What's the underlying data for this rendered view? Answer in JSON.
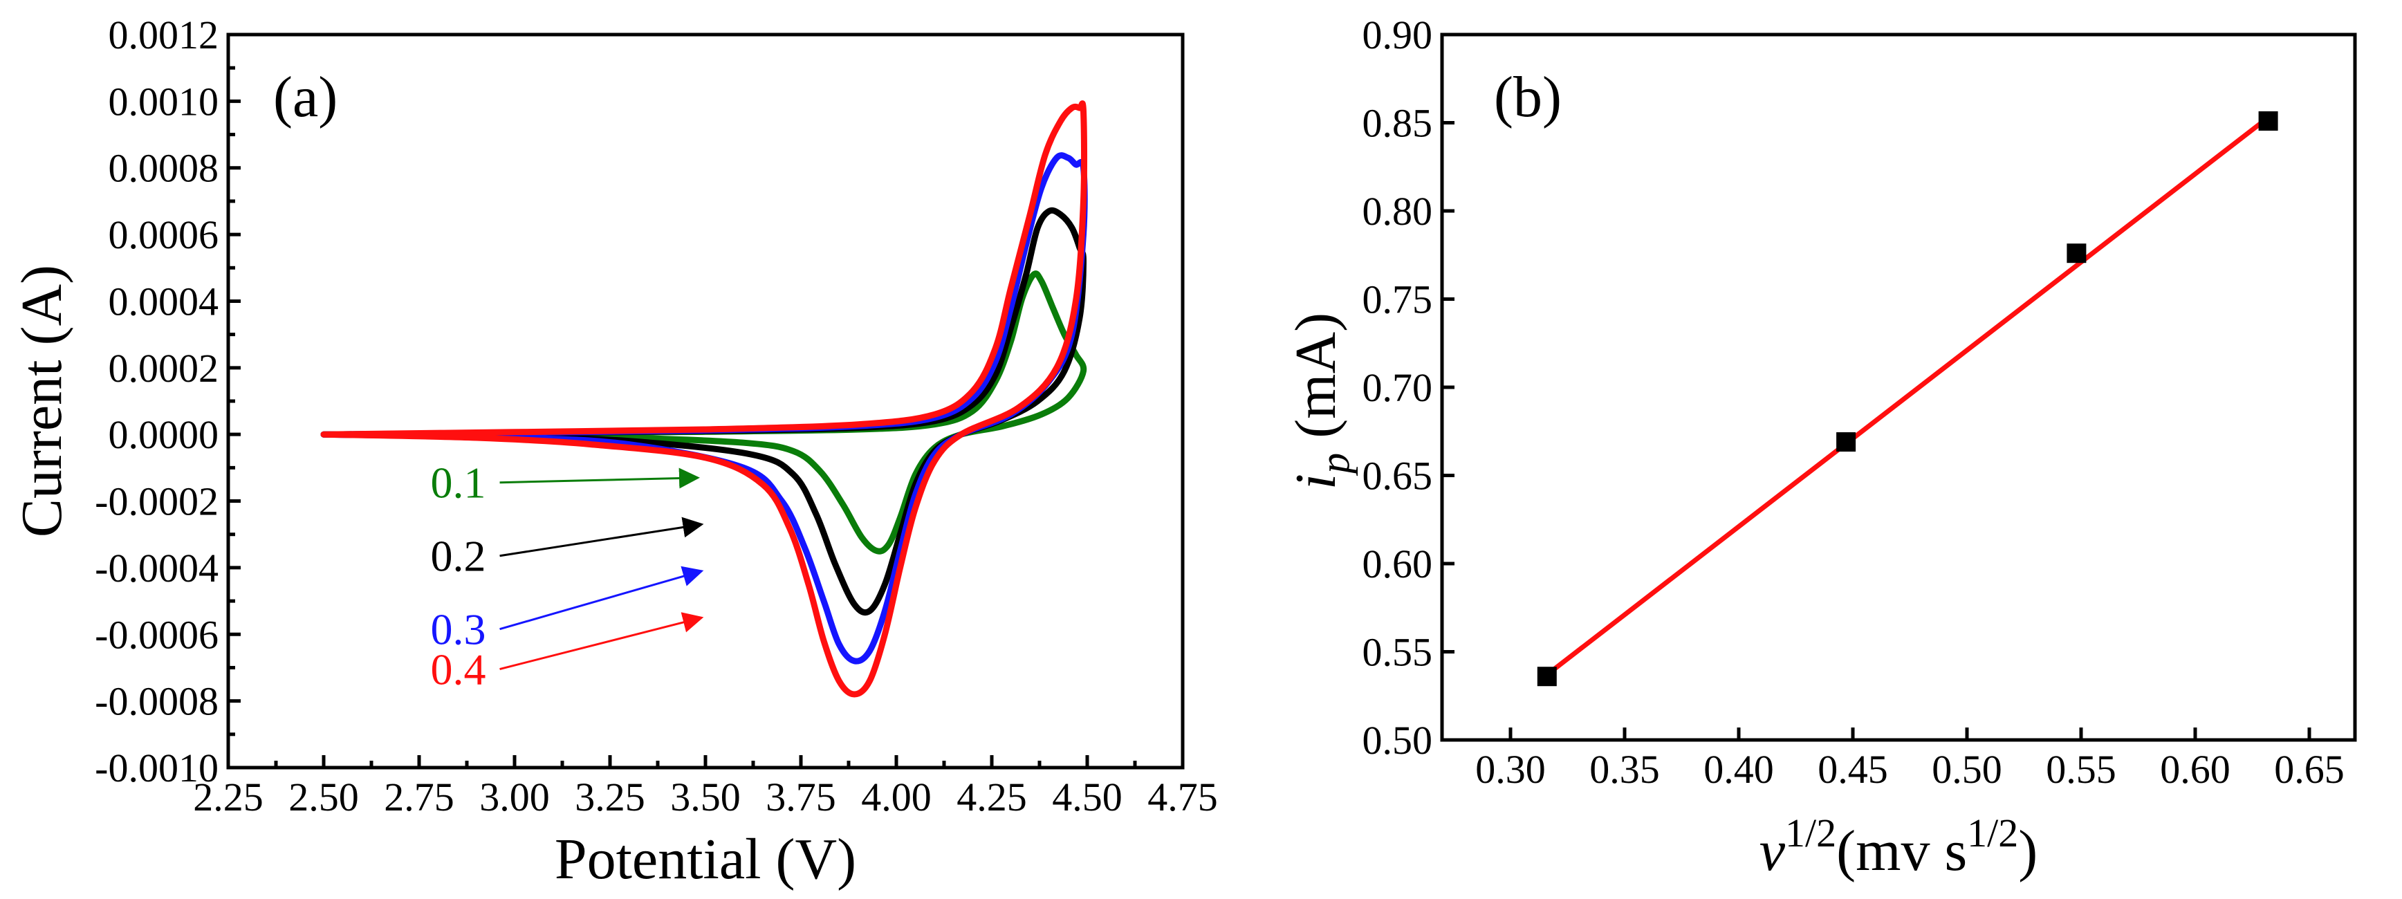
{
  "colors": {
    "green": "#0a7d0a",
    "black": "#000000",
    "blue": "#1515ff",
    "red": "#ff0f0f",
    "marker": "#000000"
  },
  "chart_data": [
    {
      "type": "line",
      "panel_label": "(a)",
      "xlabel": "Potential (V)",
      "ylabel": "Current (A)",
      "xlim": [
        2.25,
        4.75
      ],
      "ylim": [
        -0.001,
        0.0012
      ],
      "x_ticks": [
        2.25,
        2.5,
        2.75,
        3.0,
        3.25,
        3.5,
        3.75,
        4.0,
        4.25,
        4.5,
        4.75
      ],
      "x_tick_labels": [
        "2.25",
        "2.50",
        "2.75",
        "3.00",
        "3.25",
        "3.50",
        "3.75",
        "4.00",
        "4.25",
        "4.50",
        "4.75"
      ],
      "y_ticks": [
        -0.001,
        -0.0008,
        -0.0006,
        -0.0004,
        -0.0002,
        0.0,
        0.0002,
        0.0004,
        0.0006,
        0.0008,
        0.001,
        0.0012
      ],
      "y_tick_labels": [
        "-0.0010",
        "-0.0008",
        "-0.0006",
        "-0.0004",
        "-0.0002",
        "0.0000",
        "0.0002",
        "0.0004",
        "0.0006",
        "0.0008",
        "0.0010",
        "0.0012"
      ],
      "grid": false,
      "series": [
        {
          "name": "0.1",
          "color": "green",
          "label_pos": [
            2.78,
            -0.00019
          ],
          "arrow_to": [
            3.48,
            -0.00013
          ],
          "forward": [
            [
              2.5,
              0.0
            ],
            [
              3.0,
              3e-06
            ],
            [
              3.5,
              8e-06
            ],
            [
              3.9,
              1.5e-05
            ],
            [
              4.1,
              3e-05
            ],
            [
              4.2,
              7e-05
            ],
            [
              4.26,
              0.00016
            ],
            [
              4.3,
              0.00028
            ],
            [
              4.33,
              0.00041
            ],
            [
              4.36,
              0.00048
            ],
            [
              4.38,
              0.00046
            ],
            [
              4.41,
              0.00038
            ],
            [
              4.44,
              0.0003
            ],
            [
              4.47,
              0.00024
            ],
            [
              4.49,
              0.00019
            ]
          ],
          "reverse": [
            [
              4.49,
              0.00019
            ],
            [
              4.45,
              0.00011
            ],
            [
              4.38,
              6e-05
            ],
            [
              4.28,
              2.5e-05
            ],
            [
              4.17,
              0.0
            ],
            [
              4.1,
              -4e-05
            ],
            [
              4.05,
              -0.00012
            ],
            [
              4.01,
              -0.00025
            ],
            [
              3.98,
              -0.00033
            ],
            [
              3.95,
              -0.00035
            ],
            [
              3.91,
              -0.00031
            ],
            [
              3.86,
              -0.00021
            ],
            [
              3.8,
              -0.00011
            ],
            [
              3.73,
              -5e-05
            ],
            [
              3.6,
              -2.5e-05
            ],
            [
              3.3,
              -1e-05
            ],
            [
              3.0,
              -4e-06
            ],
            [
              2.5,
              0.0
            ]
          ]
        },
        {
          "name": "0.2",
          "color": "black",
          "label_pos": [
            2.78,
            -0.00041
          ],
          "arrow_to": [
            3.49,
            -0.00027
          ],
          "forward": [
            [
              2.5,
              0.0
            ],
            [
              3.0,
              4e-06
            ],
            [
              3.5,
              1e-05
            ],
            [
              3.9,
              2e-05
            ],
            [
              4.1,
              4e-05
            ],
            [
              4.2,
              9e-05
            ],
            [
              4.26,
              0.00018
            ],
            [
              4.3,
              0.00032
            ],
            [
              4.34,
              0.00048
            ],
            [
              4.37,
              0.00062
            ],
            [
              4.4,
              0.00067
            ],
            [
              4.43,
              0.00066
            ],
            [
              4.46,
              0.00062
            ],
            [
              4.48,
              0.00056
            ],
            [
              4.49,
              0.00052
            ]
          ],
          "reverse": [
            [
              4.49,
              0.00052
            ],
            [
              4.48,
              0.00035
            ],
            [
              4.44,
              0.00019
            ],
            [
              4.37,
              0.0001
            ],
            [
              4.27,
              4e-05
            ],
            [
              4.17,
              0.0
            ],
            [
              4.1,
              -5e-05
            ],
            [
              4.05,
              -0.00015
            ],
            [
              4.01,
              -0.0003
            ],
            [
              3.97,
              -0.00045
            ],
            [
              3.93,
              -0.00053
            ],
            [
              3.89,
              -0.00051
            ],
            [
              3.84,
              -0.00039
            ],
            [
              3.79,
              -0.00024
            ],
            [
              3.73,
              -0.00012
            ],
            [
              3.62,
              -6e-05
            ],
            [
              3.3,
              -2e-05
            ],
            [
              3.0,
              -8e-06
            ],
            [
              2.5,
              0.0
            ]
          ]
        },
        {
          "name": "0.3",
          "color": "blue",
          "label_pos": [
            2.78,
            -0.00063
          ],
          "arrow_to": [
            3.49,
            -0.00041
          ],
          "forward": [
            [
              2.5,
              0.0
            ],
            [
              3.0,
              5e-06
            ],
            [
              3.5,
              1.2e-05
            ],
            [
              3.9,
              2.5e-05
            ],
            [
              4.1,
              5e-05
            ],
            [
              4.2,
              0.00011
            ],
            [
              4.26,
              0.00022
            ],
            [
              4.3,
              0.00038
            ],
            [
              4.34,
              0.00057
            ],
            [
              4.38,
              0.00074
            ],
            [
              4.42,
              0.00083
            ],
            [
              4.45,
              0.00083
            ],
            [
              4.47,
              0.00081
            ],
            [
              4.49,
              0.0008
            ]
          ],
          "reverse": [
            [
              4.49,
              0.0008
            ],
            [
              4.49,
              0.0006
            ],
            [
              4.46,
              0.0003
            ],
            [
              4.4,
              0.00016
            ],
            [
              4.3,
              6e-05
            ],
            [
              4.17,
              0.0
            ],
            [
              4.1,
              -6e-05
            ],
            [
              4.05,
              -0.00018
            ],
            [
              4.01,
              -0.00035
            ],
            [
              3.97,
              -0.00053
            ],
            [
              3.93,
              -0.00065
            ],
            [
              3.89,
              -0.00068
            ],
            [
              3.85,
              -0.00063
            ],
            [
              3.81,
              -0.0005
            ],
            [
              3.76,
              -0.00034
            ],
            [
              3.7,
              -0.0002
            ],
            [
              3.6,
              -0.0001
            ],
            [
              3.3,
              -3e-05
            ],
            [
              3.0,
              -1e-05
            ],
            [
              2.5,
              0.0
            ]
          ]
        },
        {
          "name": "0.4",
          "color": "red",
          "label_pos": [
            2.78,
            -0.00075
          ],
          "arrow_to": [
            3.49,
            -0.00055
          ],
          "forward": [
            [
              2.5,
              0.0
            ],
            [
              3.0,
              7e-06
            ],
            [
              3.5,
              1.5e-05
            ],
            [
              3.9,
              3e-05
            ],
            [
              4.1,
              6e-05
            ],
            [
              4.2,
              0.00013
            ],
            [
              4.26,
              0.00026
            ],
            [
              4.3,
              0.00044
            ],
            [
              4.35,
              0.00066
            ],
            [
              4.39,
              0.00084
            ],
            [
              4.43,
              0.00094
            ],
            [
              4.46,
              0.00098
            ],
            [
              4.48,
              0.00098
            ],
            [
              4.49,
              0.00097
            ]
          ],
          "reverse": [
            [
              4.49,
              0.00097
            ],
            [
              4.49,
              0.0007
            ],
            [
              4.47,
              0.0004
            ],
            [
              4.42,
              0.0002
            ],
            [
              4.32,
              8e-05
            ],
            [
              4.17,
              0.0
            ],
            [
              4.1,
              -8e-05
            ],
            [
              4.05,
              -0.00022
            ],
            [
              4.01,
              -0.0004
            ],
            [
              3.97,
              -0.0006
            ],
            [
              3.93,
              -0.00074
            ],
            [
              3.89,
              -0.00078
            ],
            [
              3.85,
              -0.00074
            ],
            [
              3.81,
              -0.00062
            ],
            [
              3.77,
              -0.00045
            ],
            [
              3.72,
              -0.00028
            ],
            [
              3.65,
              -0.00015
            ],
            [
              3.5,
              -7e-05
            ],
            [
              3.2,
              -3e-05
            ],
            [
              2.9,
              -1e-05
            ],
            [
              2.5,
              0.0
            ]
          ]
        }
      ]
    },
    {
      "type": "scatter",
      "panel_label": "(b)",
      "xlabel_main": "v",
      "xlabel_sup": "1/2",
      "xlabel_rest": "(mv s",
      "xlabel_sup2": "1/2",
      "xlabel_close": ")",
      "ylabel_main": "i",
      "ylabel_sub": "p",
      "ylabel_rest": " (mA)",
      "xlim": [
        0.27,
        0.67
      ],
      "ylim": [
        0.5,
        0.9
      ],
      "x_ticks": [
        0.3,
        0.35,
        0.4,
        0.45,
        0.5,
        0.55,
        0.6,
        0.65
      ],
      "x_tick_labels": [
        "0.30",
        "0.35",
        "0.40",
        "0.45",
        "0.50",
        "0.55",
        "0.60",
        "0.65"
      ],
      "y_ticks": [
        0.5,
        0.55,
        0.6,
        0.65,
        0.7,
        0.75,
        0.8,
        0.85,
        0.9
      ],
      "y_tick_labels": [
        "0.50",
        "0.55",
        "0.60",
        "0.65",
        "0.70",
        "0.75",
        "0.80",
        "0.85",
        "0.90"
      ],
      "grid": false,
      "points": [
        {
          "x": 0.316,
          "y": 0.536
        },
        {
          "x": 0.447,
          "y": 0.669
        },
        {
          "x": 0.548,
          "y": 0.776
        },
        {
          "x": 0.632,
          "y": 0.851
        }
      ],
      "fit_line": {
        "x": [
          0.316,
          0.632
        ],
        "y": [
          0.537,
          0.853
        ],
        "color": "red"
      }
    }
  ]
}
